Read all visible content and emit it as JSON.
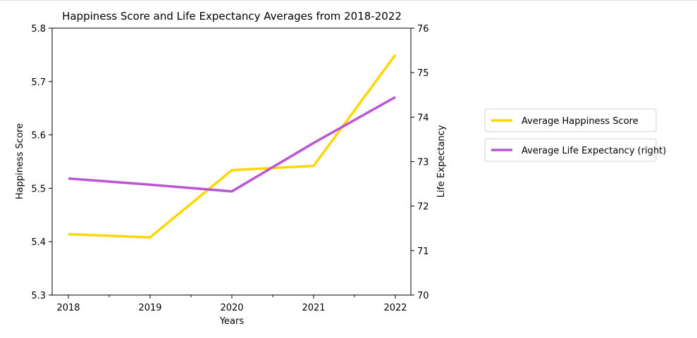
{
  "chart_data": {
    "type": "line",
    "title": "Happiness Score and Life Expectancy Averages from 2018-2022",
    "xlabel": "Years",
    "ylabel": "Happiness Score",
    "y2label": "Life Expectancy",
    "categories": [
      "2018",
      "2019",
      "2020",
      "2021",
      "2022"
    ],
    "ylim": [
      5.3,
      5.8
    ],
    "y2lim": [
      70,
      76
    ],
    "yticks": [
      "5.3",
      "5.4",
      "5.5",
      "5.6",
      "5.7",
      "5.8"
    ],
    "y2ticks": [
      "70",
      "71",
      "72",
      "73",
      "74",
      "75",
      "76"
    ],
    "grid": false,
    "legend_position": "right, outside plot area",
    "series": [
      {
        "name": "Average Happiness Score",
        "axis": "left",
        "color": "#FFD700",
        "values": [
          5.414,
          5.408,
          5.534,
          5.542,
          5.75
        ]
      },
      {
        "name": "Average Life Expectancy (right)",
        "axis": "right",
        "color": "#BA55D3",
        "values": [
          72.62,
          72.48,
          72.33,
          73.42,
          74.45
        ]
      }
    ]
  }
}
